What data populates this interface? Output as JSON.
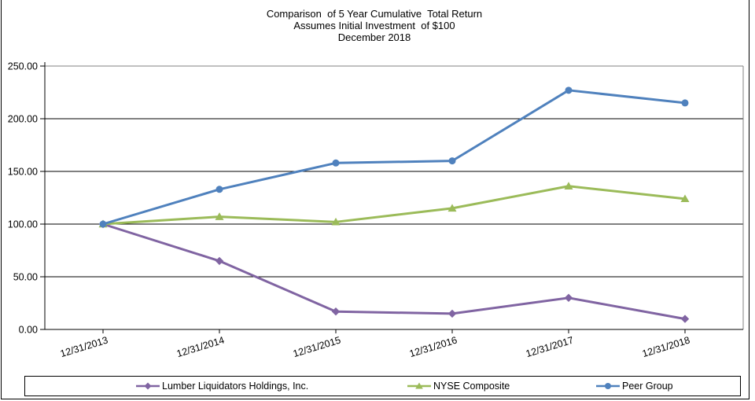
{
  "title": {
    "line1": "Comparison  of 5 Year Cumulative  Total Return",
    "line2": "Assumes Initial Investment  of $100",
    "line3": "December 2018"
  },
  "chart_data": {
    "type": "line",
    "categories": [
      "12/31/2013",
      "12/31/2014",
      "12/31/2015",
      "12/31/2016",
      "12/31/2017",
      "12/31/2018"
    ],
    "series": [
      {
        "name": "Lumber Liquidators Holdings, Inc.",
        "color": "#8064A2",
        "marker": "diamond",
        "values": [
          100,
          65,
          17,
          15,
          30,
          10
        ]
      },
      {
        "name": "NYSE Composite",
        "color": "#9BBB59",
        "marker": "triangle",
        "values": [
          100,
          107,
          102,
          115,
          136,
          124
        ]
      },
      {
        "name": "Peer Group",
        "color": "#4F81BD",
        "marker": "circle",
        "values": [
          100,
          133,
          158,
          160,
          227,
          215
        ]
      }
    ],
    "ylim": [
      0,
      250
    ],
    "ytick_interval": 50,
    "ytick_labels": [
      "0.00",
      "50.00",
      "100.00",
      "150.00",
      "200.00",
      "250.00"
    ],
    "grid": true,
    "gridline_color": "#000000",
    "plot_border_color": "#808080",
    "axis_color": "#000000",
    "legend_position": "bottom"
  }
}
